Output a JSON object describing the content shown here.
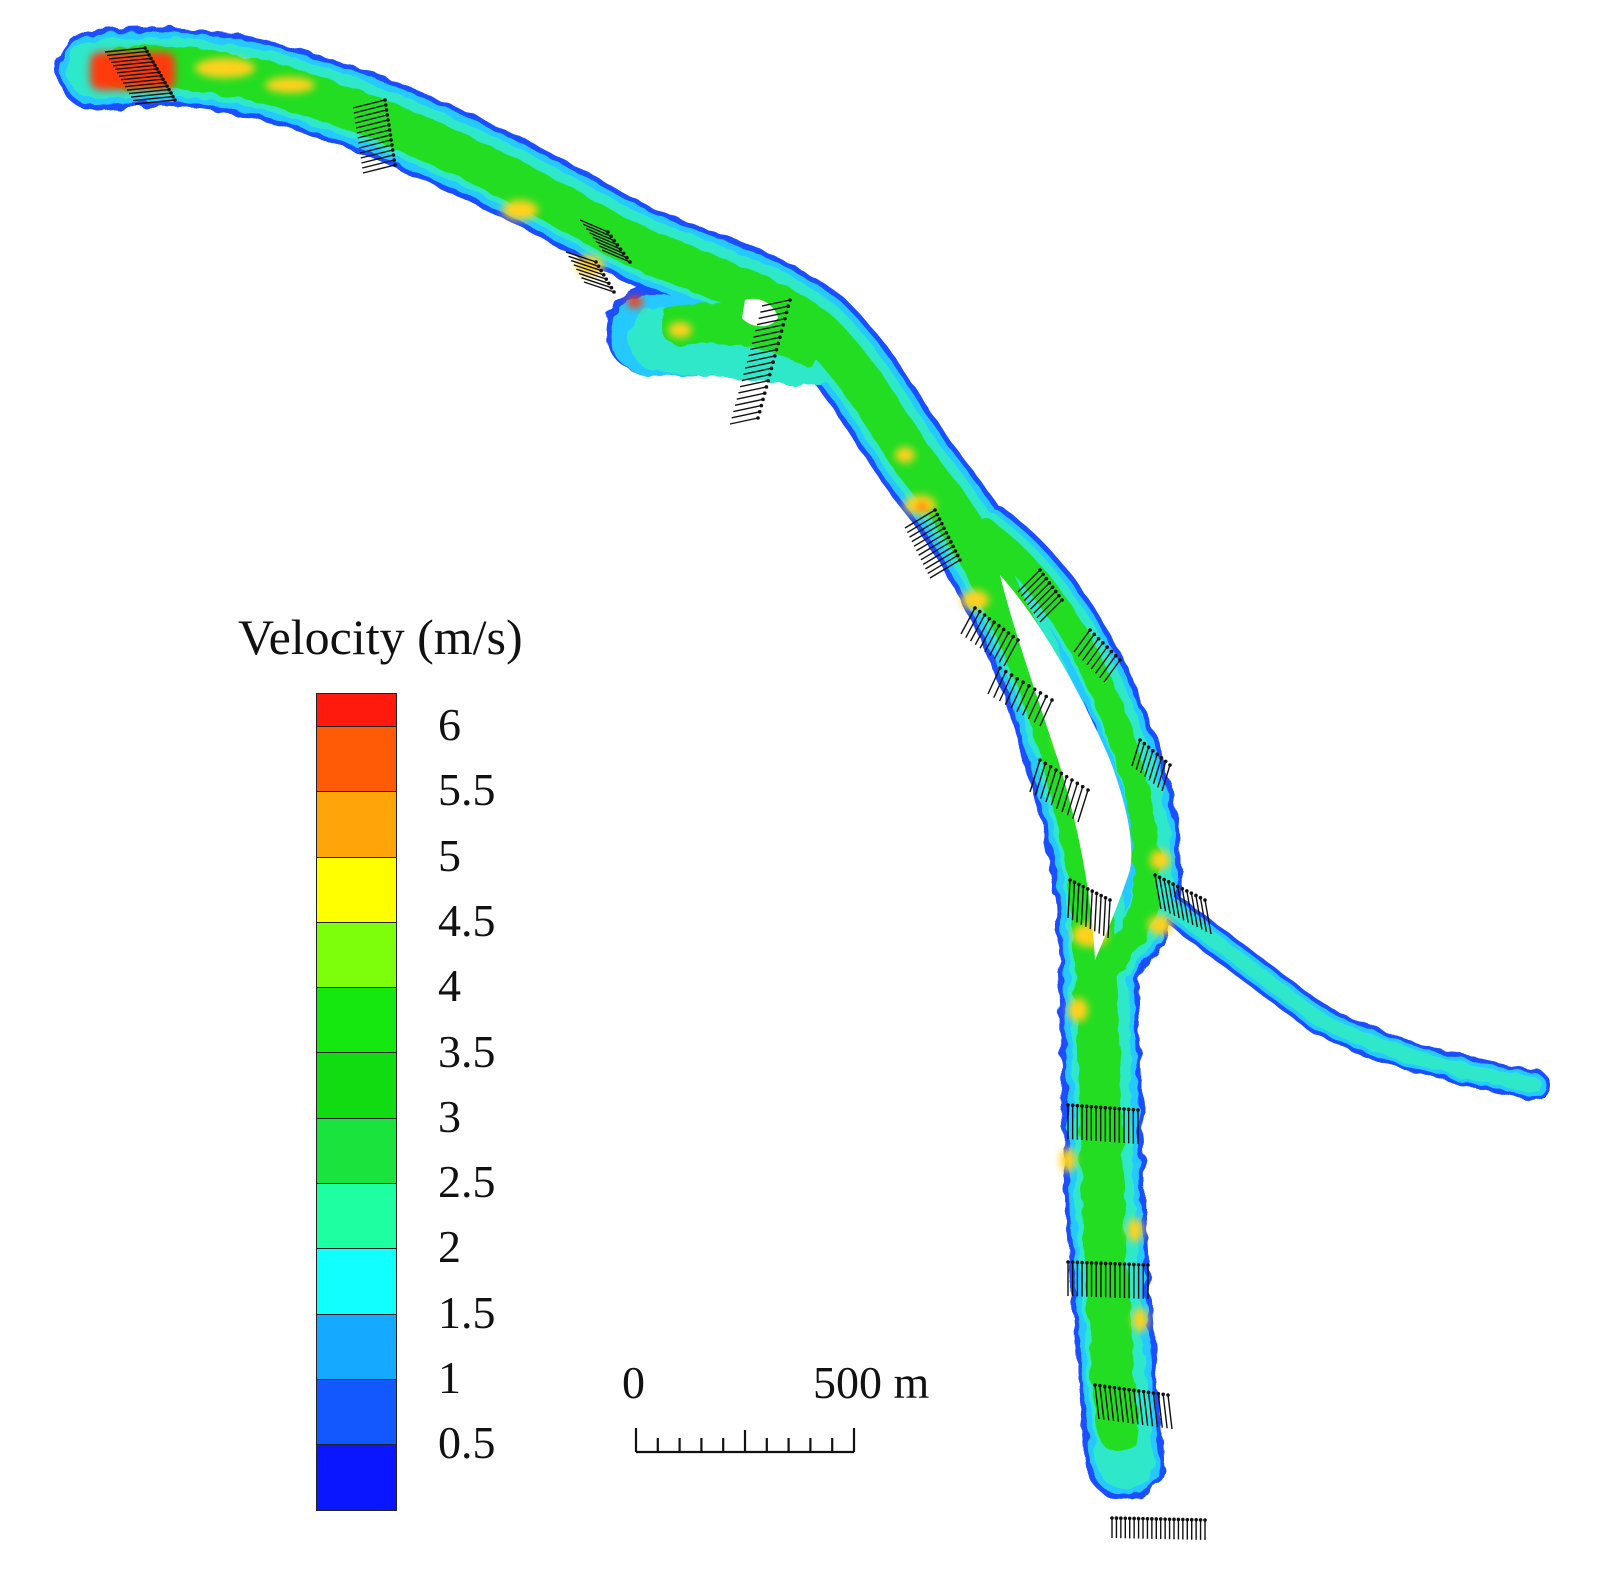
{
  "legend": {
    "title": "Velocity (m/s)",
    "bands": [
      {
        "color": "#ff1a0d"
      },
      {
        "color": "#ff5a05"
      },
      {
        "color": "#ffa50a"
      },
      {
        "color": "#ffff00"
      },
      {
        "color": "#7dff0c"
      },
      {
        "color": "#15e80f"
      },
      {
        "color": "#11dc11"
      },
      {
        "color": "#19e33c"
      },
      {
        "color": "#1dffa0"
      },
      {
        "color": "#12ffff"
      },
      {
        "color": "#15a9ff"
      },
      {
        "color": "#1357ff"
      },
      {
        "color": "#0a16ff"
      }
    ],
    "ticks": [
      "6",
      "5.5",
      "5",
      "4.5",
      "4",
      "3.5",
      "3",
      "2.5",
      "2",
      "1.5",
      "1",
      "0.5"
    ]
  },
  "scale_bar": {
    "start_label": "0",
    "end_label": "500 m",
    "minor_divisions": 10
  },
  "colors": {
    "bank_low": "#1a4dff",
    "edge": "#27c9ff",
    "shallow": "#2ee8c9",
    "main": "#22dd22",
    "fast": "#ffd21a",
    "peak": "#ff3a10",
    "vector": "#111111"
  }
}
